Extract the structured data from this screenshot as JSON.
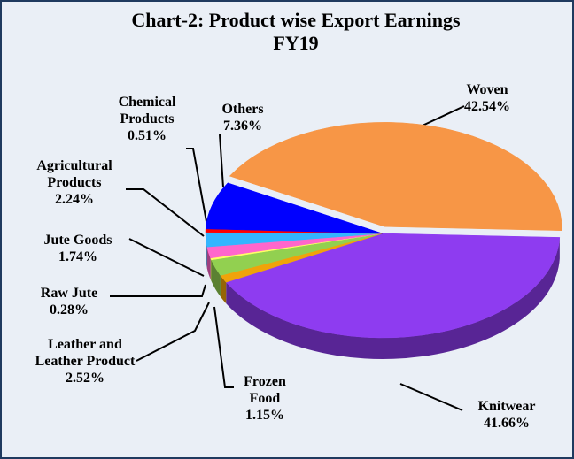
{
  "chart_data": {
    "type": "pie",
    "title": "Chart-2: Product wise Export Earnings FY19",
    "categories": [
      "Woven",
      "Knitwear",
      "Frozen Food",
      "Leather and Leather Product",
      "Raw Jute",
      "Jute Goods",
      "Agricultural Products",
      "Chemical Products",
      "Others"
    ],
    "values": [
      42.54,
      41.66,
      1.15,
      2.52,
      0.28,
      1.74,
      2.24,
      0.51,
      7.36
    ],
    "value_labels": [
      "42.54%",
      "41.66%",
      "1.15%",
      "2.52%",
      "0.28%",
      "1.74%",
      "2.24%",
      "0.51%",
      "7.36%"
    ],
    "colors": [
      "#f79646",
      "#8e3cf0",
      "#f0a30a",
      "#92d050",
      "#ffff66",
      "#ff66cc",
      "#33b5ff",
      "#ff0000",
      "#0000ff"
    ]
  }
}
